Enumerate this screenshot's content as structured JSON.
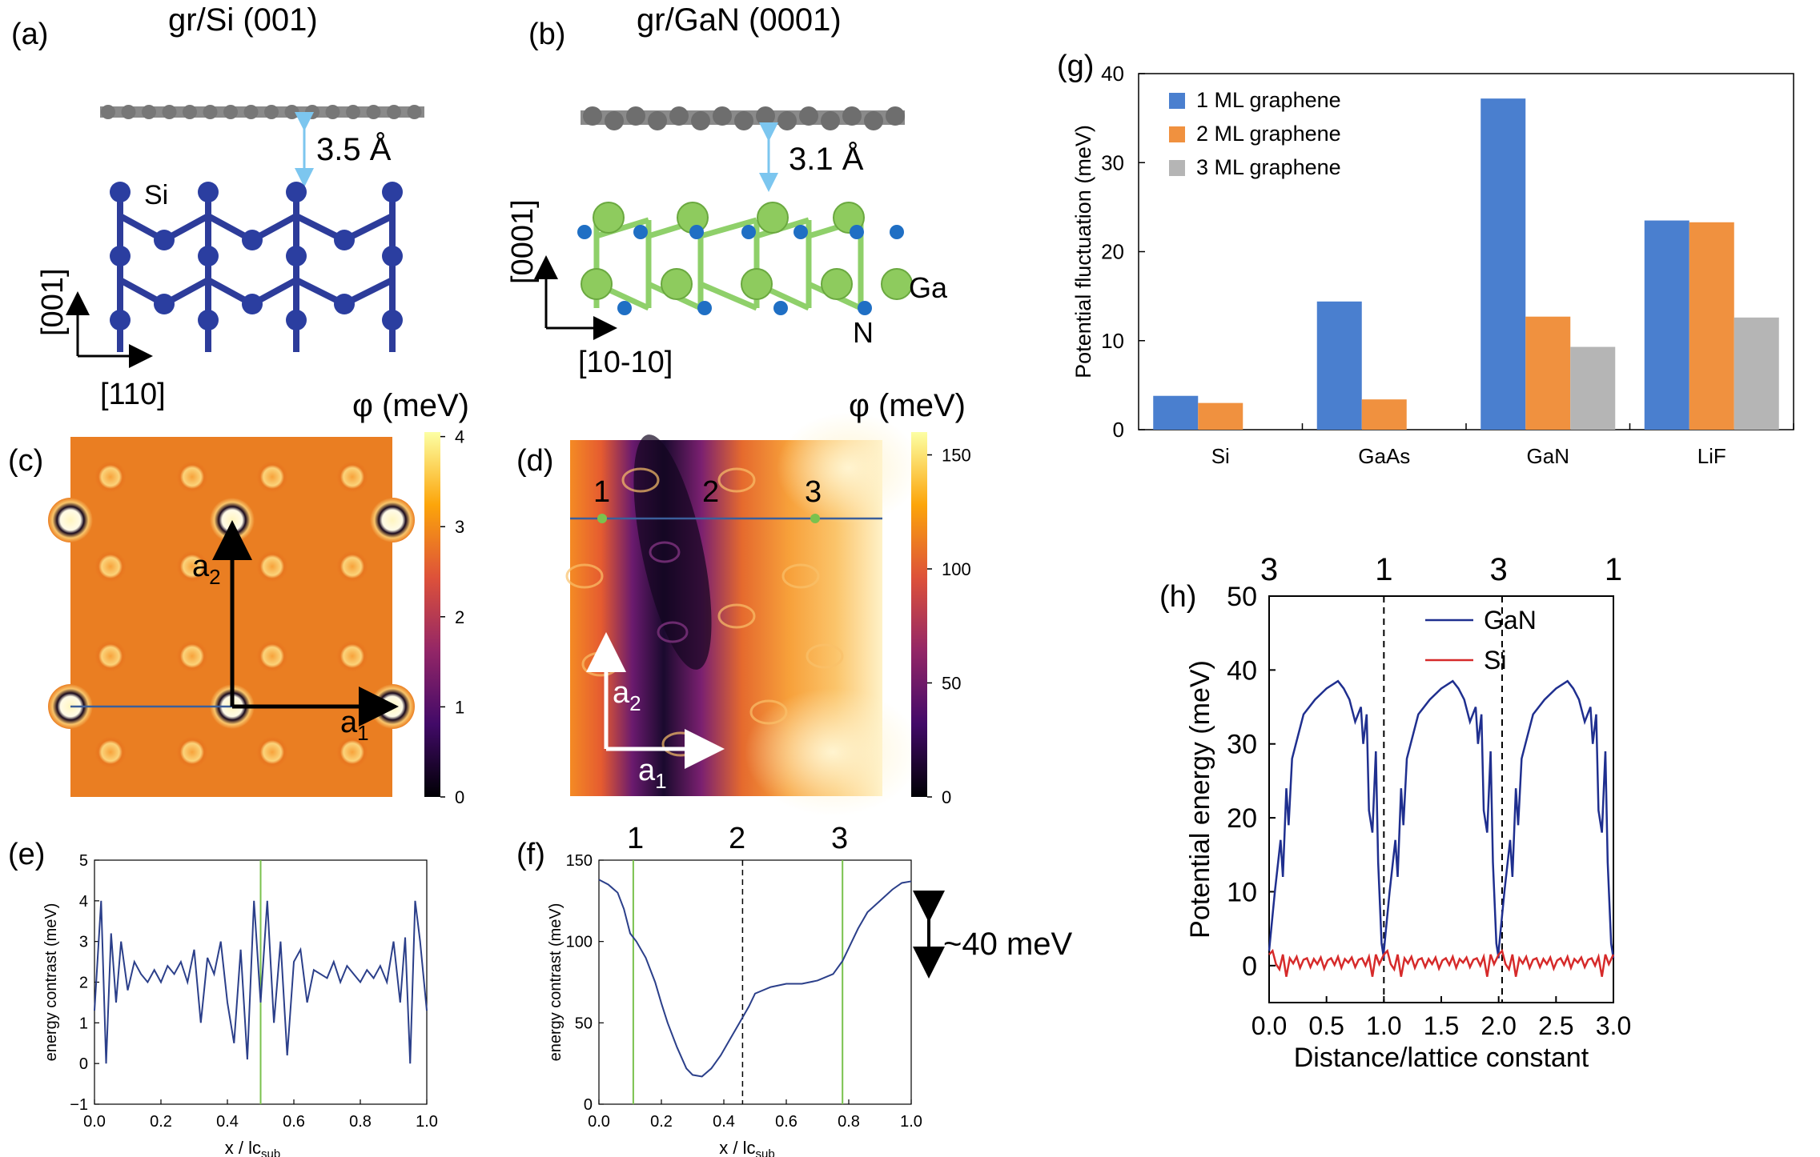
{
  "panels": {
    "a": {
      "label": "(a)",
      "title": "gr/Si (001)",
      "distance": "3.5 Å",
      "atom": "Si",
      "axis_v": "[001]",
      "axis_h": "[110]"
    },
    "b": {
      "label": "(b)",
      "title": "gr/GaN (0001)",
      "distance": "3.1 Å",
      "atom_ga": "Ga",
      "atom_n": "N",
      "axis_v": "[0001]",
      "axis_h": "[10-10]"
    },
    "c": {
      "label": "(c)",
      "colorbar_title": "φ (meV)",
      "colorbar_ticks": [
        "0",
        "1",
        "2",
        "3",
        "4"
      ],
      "vec1": "a",
      "vec1_sub": "1",
      "vec2": "a",
      "vec2_sub": "2"
    },
    "d": {
      "label": "(d)",
      "colorbar_title": "φ (meV)",
      "colorbar_ticks": [
        "0",
        "50",
        "100",
        "150"
      ],
      "points": [
        "1",
        "2",
        "3"
      ],
      "vec1": "a",
      "vec1_sub": "1",
      "vec2": "a",
      "vec2_sub": "2"
    },
    "e": {
      "label": "(e)"
    },
    "f": {
      "label": "(f)",
      "points": [
        "1",
        "2",
        "3"
      ],
      "annotation": "~40 meV"
    },
    "g": {
      "label": "(g)"
    },
    "h": {
      "label": "(h)",
      "top_labels": [
        "3",
        "1",
        "3",
        "1"
      ]
    }
  },
  "colors": {
    "blue_bar": "#4a7fcf",
    "orange_bar": "#f0913f",
    "gray_bar": "#b5b5b5",
    "gan_line": "#1f2f8f",
    "si_line": "#d62a2a",
    "profile_line": "#2b3f8a",
    "green_marker": "#7ac24e"
  },
  "chart_data": [
    {
      "id": "g",
      "type": "bar",
      "categories": [
        "Si",
        "GaAs",
        "GaN",
        "LiF"
      ],
      "series": [
        {
          "name": "1 ML graphene",
          "values": [
            3.8,
            14.4,
            37.2,
            23.5
          ]
        },
        {
          "name": "2 ML graphene",
          "values": [
            3.0,
            3.4,
            12.7,
            23.3
          ]
        },
        {
          "name": "3 ML graphene",
          "values": [
            null,
            null,
            9.3,
            12.6
          ]
        }
      ],
      "ylabel": "Potential fluctuation (meV)",
      "ylim": [
        0,
        40
      ],
      "yticks": [
        "0",
        "10",
        "20",
        "30",
        "40"
      ],
      "legend": "top-left"
    },
    {
      "id": "h",
      "type": "line",
      "xlabel": "Distance/lattice constant",
      "ylabel": "Potential energy (meV)",
      "xlim": [
        0,
        3
      ],
      "ylim": [
        -5,
        50
      ],
      "xticks": [
        "0.0",
        "0.5",
        "1.0",
        "1.5",
        "2.0",
        "2.5",
        "3.0"
      ],
      "yticks": [
        "0",
        "10",
        "20",
        "30",
        "40",
        "50"
      ],
      "series": [
        {
          "name": "GaN",
          "x": [
            0,
            0.05,
            0.1,
            0.12,
            0.15,
            0.17,
            0.2,
            0.25,
            0.3,
            0.4,
            0.5,
            0.6,
            0.65,
            0.7,
            0.75,
            0.8,
            0.82,
            0.85,
            0.87,
            0.9,
            0.93,
            0.95,
            0.98,
            1.0
          ],
          "y": [
            2,
            10,
            17,
            12,
            24,
            19,
            28,
            31,
            34,
            36,
            37.5,
            38.5,
            37.5,
            36,
            33,
            35,
            30,
            34,
            21,
            18,
            29,
            14,
            3,
            1
          ]
        },
        {
          "name": "Si",
          "x": [
            0,
            0.03,
            0.06,
            0.09,
            0.12,
            0.15,
            0.18,
            0.21,
            0.24,
            0.27,
            0.3,
            0.33,
            0.36,
            0.39,
            0.42,
            0.45,
            0.48,
            0.51,
            0.54,
            0.57,
            0.6,
            0.63,
            0.66,
            0.69,
            0.72,
            0.75,
            0.78,
            0.81,
            0.84,
            0.87,
            0.9,
            0.93,
            0.96,
            1.0
          ],
          "y": [
            1.5,
            2.0,
            0.2,
            -0.5,
            1.5,
            -1.5,
            1.0,
            0.3,
            1.2,
            -0.3,
            0.8,
            1.0,
            -0.2,
            0.9,
            0.2,
            1.1,
            -0.4,
            0.7,
            1.0,
            0.1,
            1.2,
            -0.3,
            0.9,
            0.4,
            1.1,
            -0.2,
            0.8,
            1.0,
            0.0,
            1.2,
            -1.5,
            1.5,
            0.2,
            1.5
          ]
        }
      ],
      "period": 1,
      "dashed_x": [
        1.0,
        2.03
      ]
    },
    {
      "id": "e",
      "type": "line",
      "xlabel": "x / lc",
      "xlabel_sub": "sub",
      "ylabel": "energy contrast (meV)",
      "xlim": [
        0,
        1
      ],
      "ylim": [
        -1,
        5
      ],
      "xticks": [
        "0.0",
        "0.2",
        "0.4",
        "0.6",
        "0.8",
        "1.0"
      ],
      "yticks": [
        "−1",
        "0",
        "1",
        "2",
        "3",
        "4",
        "5"
      ],
      "x": [
        0.0,
        0.02,
        0.035,
        0.05,
        0.065,
        0.08,
        0.1,
        0.12,
        0.14,
        0.16,
        0.18,
        0.2,
        0.22,
        0.24,
        0.26,
        0.28,
        0.3,
        0.32,
        0.34,
        0.36,
        0.38,
        0.4,
        0.42,
        0.44,
        0.46,
        0.48,
        0.5,
        0.52,
        0.54,
        0.56,
        0.58,
        0.6,
        0.62,
        0.64,
        0.66,
        0.68,
        0.7,
        0.72,
        0.74,
        0.76,
        0.78,
        0.8,
        0.82,
        0.84,
        0.86,
        0.88,
        0.9,
        0.92,
        0.935,
        0.95,
        0.965,
        0.98,
        1.0
      ],
      "y": [
        1.3,
        4.0,
        0.0,
        3.2,
        1.5,
        3.0,
        1.8,
        2.5,
        2.2,
        2.0,
        2.3,
        2.0,
        2.4,
        2.2,
        2.5,
        2.0,
        2.8,
        1.0,
        2.6,
        2.2,
        3.0,
        1.5,
        0.5,
        2.8,
        0.1,
        4.0,
        1.5,
        4.0,
        1.0,
        3.0,
        0.2,
        2.5,
        2.8,
        1.5,
        2.3,
        2.2,
        2.1,
        2.5,
        2.0,
        2.4,
        2.2,
        2.0,
        2.3,
        2.1,
        2.4,
        2.0,
        3.0,
        1.5,
        3.1,
        0.0,
        4.0,
        3.0,
        1.3
      ],
      "marker_x": [
        0.5
      ]
    },
    {
      "id": "f",
      "type": "line",
      "xlabel": "x / lc",
      "xlabel_sub": "sub",
      "ylabel": "energy contrast (meV)",
      "xlim": [
        0,
        1
      ],
      "ylim": [
        0,
        150
      ],
      "xticks": [
        "0.0",
        "0.2",
        "0.4",
        "0.6",
        "0.8",
        "1.0"
      ],
      "yticks": [
        "0",
        "50",
        "100",
        "150"
      ],
      "x": [
        0.0,
        0.03,
        0.06,
        0.08,
        0.1,
        0.12,
        0.15,
        0.18,
        0.2,
        0.22,
        0.25,
        0.28,
        0.3,
        0.33,
        0.36,
        0.39,
        0.42,
        0.45,
        0.48,
        0.5,
        0.55,
        0.6,
        0.65,
        0.7,
        0.75,
        0.78,
        0.8,
        0.83,
        0.86,
        0.9,
        0.94,
        0.97,
        1.0
      ],
      "y": [
        138,
        135,
        130,
        120,
        105,
        100,
        90,
        75,
        62,
        50,
        35,
        22,
        18,
        17,
        22,
        30,
        40,
        50,
        60,
        68,
        72,
        74,
        74,
        76,
        80,
        88,
        96,
        108,
        118,
        125,
        132,
        136,
        137
      ],
      "marker_x": [
        0.11,
        0.78
      ],
      "dashed_x": [
        0.46
      ]
    }
  ]
}
